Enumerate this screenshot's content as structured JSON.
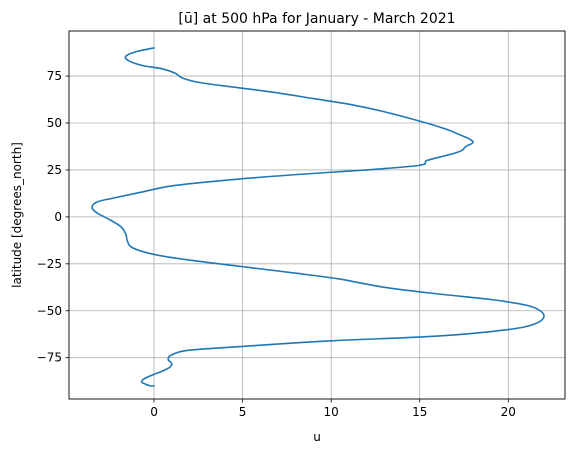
{
  "chart_data": {
    "type": "line",
    "title": "[ū] at 500 hPa for January - March 2021",
    "xlabel": "u",
    "ylabel": "latitude [degrees_north]",
    "xlim": [
      -4.8,
      23.2
    ],
    "ylim": [
      -97,
      99
    ],
    "xticks": [
      0,
      5,
      10,
      15,
      20
    ],
    "yticks": [
      -75,
      -50,
      -25,
      0,
      25,
      50,
      75
    ],
    "grid": true,
    "line_color": "#1f77b4",
    "series": [
      {
        "x": [
          0.0,
          -1.0,
          -1.6,
          -1.4,
          -0.6,
          0.4,
          1.2,
          1.6,
          2.6,
          4.6,
          7.0,
          9.0,
          11.0,
          13.0,
          15.0,
          16.4,
          17.2,
          17.8,
          18.0,
          17.6,
          17.4,
          17.0,
          16.4,
          15.4,
          15.0,
          12.0,
          8.0,
          4.0,
          1.0,
          -0.8,
          -2.3,
          -3.2,
          -3.5,
          -3.2,
          -2.6,
          -1.9,
          -1.6,
          -1.5,
          -1.2,
          0.0,
          2.0,
          5.0,
          8.0,
          10.4,
          13.0,
          16.0,
          19.0,
          21.0,
          21.8,
          22.0,
          21.5,
          20.0,
          16.0,
          10.0,
          5.0,
          2.0,
          1.0,
          0.8,
          1.0,
          0.9,
          0.5,
          0.1,
          -0.3,
          -0.6,
          -0.7,
          -0.5,
          -0.2,
          0.0
        ],
        "y": [
          90.0,
          88.0,
          85.5,
          83.0,
          80.5,
          79.0,
          76.5,
          74.0,
          71.5,
          69.0,
          66.0,
          63.0,
          60.0,
          56.0,
          51.0,
          47.0,
          44.0,
          41.5,
          39.5,
          37.5,
          35.5,
          34.0,
          32.5,
          30.0,
          27.5,
          25.0,
          22.5,
          19.5,
          16.5,
          13.0,
          10.0,
          8.0,
          5.0,
          2.0,
          -1.0,
          -5.0,
          -9.0,
          -13.0,
          -16.5,
          -20.0,
          -23.0,
          -26.5,
          -30.0,
          -33.0,
          -37.5,
          -41.0,
          -44.0,
          -47.0,
          -50.0,
          -53.5,
          -57.0,
          -60.0,
          -63.5,
          -66.0,
          -69.0,
          -71.0,
          -73.5,
          -76.0,
          -78.0,
          -80.0,
          -82.0,
          -83.5,
          -85.0,
          -86.5,
          -88.0,
          -89.0,
          -90.0,
          -90.0
        ]
      }
    ]
  }
}
